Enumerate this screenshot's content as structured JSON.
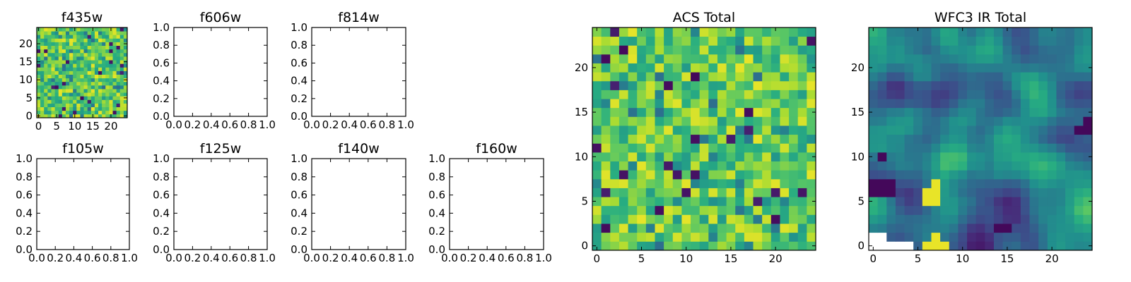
{
  "figure": {
    "panels": [
      {
        "id": "f435w",
        "title": "f435w",
        "kind": "image",
        "map": "noise_a",
        "xticks": [
          "0",
          "5",
          "10",
          "15",
          "20"
        ],
        "yticks": [
          "0",
          "5",
          "10",
          "15",
          "20"
        ]
      },
      {
        "id": "f606w",
        "title": "f606w",
        "kind": "empty",
        "xticks": [
          "0.0",
          "0.2",
          "0.4",
          "0.6",
          "0.8",
          "1.0"
        ],
        "yticks": [
          "0.0",
          "0.2",
          "0.4",
          "0.6",
          "0.8",
          "1.0"
        ]
      },
      {
        "id": "f814w",
        "title": "f814w",
        "kind": "empty",
        "xticks": [
          "0.0",
          "0.2",
          "0.4",
          "0.6",
          "0.8",
          "1.0"
        ],
        "yticks": [
          "0.0",
          "0.2",
          "0.4",
          "0.6",
          "0.8",
          "1.0"
        ]
      },
      {
        "id": "f105w",
        "title": "f105w",
        "kind": "empty",
        "xticks": [
          "0.0",
          "0.2",
          "0.4",
          "0.6",
          "0.8",
          "1.0"
        ],
        "yticks": [
          "0.0",
          "0.2",
          "0.4",
          "0.6",
          "0.8",
          "1.0"
        ]
      },
      {
        "id": "f125w",
        "title": "f125w",
        "kind": "empty",
        "xticks": [
          "0.0",
          "0.2",
          "0.4",
          "0.6",
          "0.8",
          "1.0"
        ],
        "yticks": [
          "0.0",
          "0.2",
          "0.4",
          "0.6",
          "0.8",
          "1.0"
        ]
      },
      {
        "id": "f140w",
        "title": "f140w",
        "kind": "empty",
        "xticks": [
          "0.0",
          "0.2",
          "0.4",
          "0.6",
          "0.8",
          "1.0"
        ],
        "yticks": [
          "0.0",
          "0.2",
          "0.4",
          "0.6",
          "0.8",
          "1.0"
        ]
      },
      {
        "id": "f160w",
        "title": "f160w",
        "kind": "empty",
        "xticks": [
          "0.0",
          "0.2",
          "0.4",
          "0.6",
          "0.8",
          "1.0"
        ],
        "yticks": [
          "0.0",
          "0.2",
          "0.4",
          "0.6",
          "0.8",
          "1.0"
        ]
      },
      {
        "id": "acs_total",
        "title": "ACS Total",
        "kind": "image",
        "map": "noise_b",
        "xticks": [
          "0",
          "5",
          "10",
          "15",
          "20"
        ],
        "yticks": [
          "0",
          "5",
          "10",
          "15",
          "20"
        ]
      },
      {
        "id": "wfc3_ir_total",
        "title": "WFC3 IR Total",
        "kind": "image",
        "map": "smooth",
        "xticks": [
          "0",
          "5",
          "10",
          "15",
          "20"
        ],
        "yticks": [
          "0",
          "5",
          "10",
          "15",
          "20"
        ]
      }
    ]
  },
  "chart_data": [
    {
      "type": "heatmap",
      "title": "f435w",
      "grid_size": [
        25,
        25
      ],
      "xlim": [
        -0.5,
        24.5
      ],
      "ylim": [
        -0.5,
        24.5
      ],
      "colormap": "viridis",
      "values": "25x25 pixel image (noisy, mostly green-yellow)"
    },
    {
      "type": "heatmap",
      "title": "f606w",
      "xlim": [
        0,
        1
      ],
      "ylim": [
        0,
        1
      ],
      "values": []
    },
    {
      "type": "heatmap",
      "title": "f814w",
      "xlim": [
        0,
        1
      ],
      "ylim": [
        0,
        1
      ],
      "values": []
    },
    {
      "type": "heatmap",
      "title": "f105w",
      "xlim": [
        0,
        1
      ],
      "ylim": [
        0,
        1
      ],
      "values": []
    },
    {
      "type": "heatmap",
      "title": "f125w",
      "xlim": [
        0,
        1
      ],
      "ylim": [
        0,
        1
      ],
      "values": []
    },
    {
      "type": "heatmap",
      "title": "f140w",
      "xlim": [
        0,
        1
      ],
      "ylim": [
        0,
        1
      ],
      "values": []
    },
    {
      "type": "heatmap",
      "title": "f160w",
      "xlim": [
        0,
        1
      ],
      "ylim": [
        0,
        1
      ],
      "values": []
    },
    {
      "type": "heatmap",
      "title": "ACS Total",
      "grid_size": [
        25,
        25
      ],
      "xlim": [
        -0.5,
        24.5
      ],
      "ylim": [
        -0.5,
        24.5
      ],
      "colormap": "viridis",
      "values": "25x25 pixel image (noisy, mostly green-yellow, few dark pixels)"
    },
    {
      "type": "heatmap",
      "title": "WFC3 IR Total",
      "grid_size": [
        25,
        25
      ],
      "xlim": [
        -0.5,
        24.5
      ],
      "ylim": [
        -0.5,
        24.5
      ],
      "colormap": "viridis",
      "values": "25x25 pixel image (smoother, mostly teal/blue, bright spot near x=6-7, y=0-5, masked bottom-left corner)"
    }
  ]
}
